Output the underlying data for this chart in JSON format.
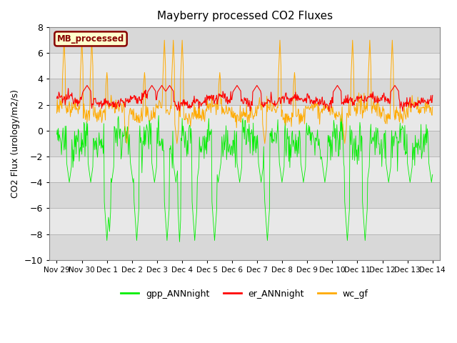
{
  "title": "Mayberry processed CO2 Fluxes",
  "ylabel": "CO2 Flux (urology/m2/s)",
  "ylim": [
    -10,
    8
  ],
  "yticks": [
    -10,
    -8,
    -6,
    -4,
    -2,
    0,
    2,
    4,
    6,
    8
  ],
  "xtick_positions": [
    0,
    1,
    2,
    3,
    4,
    5,
    6,
    7,
    8,
    9,
    10,
    11,
    12,
    13,
    14,
    15
  ],
  "xtick_labels": [
    "Nov 29",
    "Nov 30",
    "Dec 1",
    "Dec 2",
    "Dec 3",
    "Dec 4",
    "Dec 5",
    "Dec 6",
    "Dec 7",
    "Dec 8",
    "Dec 9",
    "Dec 10",
    "Dec 11",
    "Dec 12",
    "Dec 13",
    "Dec 14"
  ],
  "bg_color": "#d8d8d8",
  "bg_color2": "#e8e8e8",
  "grid_color": "#c0c0c0",
  "legend_entries": [
    "gpp_ANNnight",
    "er_ANNnight",
    "wc_gf"
  ],
  "legend_colors": [
    "#00ee00",
    "#ff0000",
    "#ffaa00"
  ],
  "line_colors": {
    "gpp": "#00ee00",
    "er": "#ff0000",
    "wc": "#ffaa00"
  },
  "mb_box_bg": "#ffffcc",
  "mb_box_edge": "#880000",
  "mb_text_color": "#880000",
  "mb_label": "MB_processed",
  "n_points": 720,
  "days": 15
}
